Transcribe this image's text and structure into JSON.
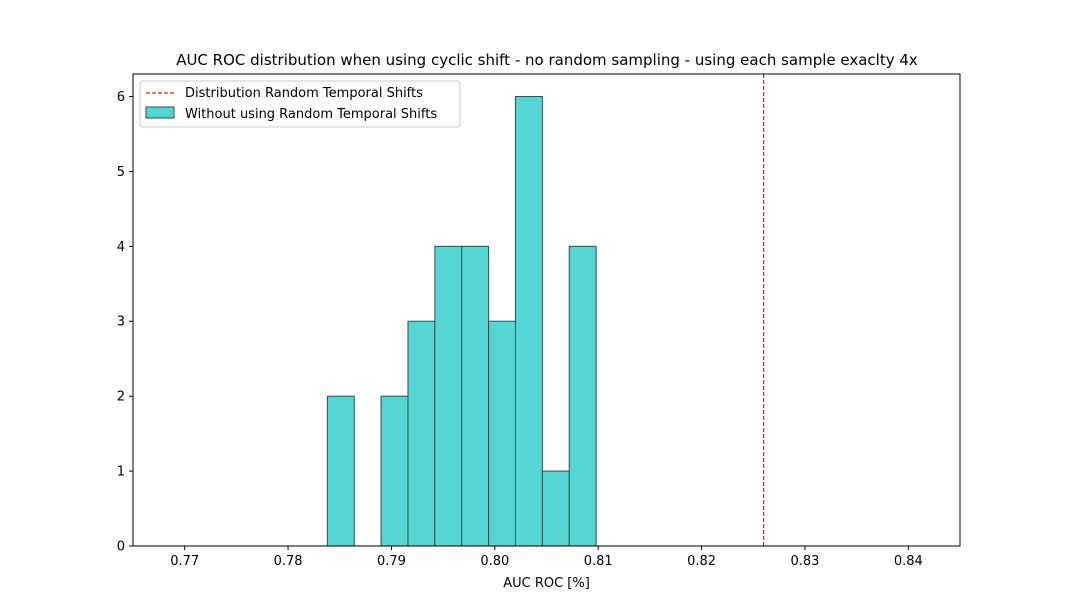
{
  "chart_data": {
    "type": "bar",
    "title": "AUC ROC distribution when using cyclic shift - no random sampling - using each sample exaclty 4x",
    "xlabel": "AUC ROC [%]",
    "ylabel": "",
    "xlim": [
      0.765,
      0.845
    ],
    "ylim": [
      0,
      6.3
    ],
    "x_ticks": [
      0.77,
      0.78,
      0.79,
      0.8,
      0.81,
      0.82,
      0.83,
      0.84
    ],
    "x_tick_labels": [
      "0.77",
      "0.78",
      "0.79",
      "0.80",
      "0.81",
      "0.82",
      "0.83",
      "0.84"
    ],
    "y_ticks": [
      0,
      1,
      2,
      3,
      4,
      5,
      6
    ],
    "y_tick_labels": [
      "0",
      "1",
      "2",
      "3",
      "4",
      "5",
      "6"
    ],
    "bin_width": 0.0026,
    "bins": [
      {
        "start": 0.7838,
        "count": 2
      },
      {
        "start": 0.789,
        "count": 2
      },
      {
        "start": 0.7916,
        "count": 3
      },
      {
        "start": 0.7942,
        "count": 4
      },
      {
        "start": 0.7968,
        "count": 4
      },
      {
        "start": 0.7994,
        "count": 3
      },
      {
        "start": 0.802,
        "count": 6
      },
      {
        "start": 0.8046,
        "count": 1
      },
      {
        "start": 0.8072,
        "count": 4
      }
    ],
    "reference_line": {
      "x": 0.826,
      "color": "#e41a1c",
      "style": "dashed"
    },
    "bar_color": "#56d5d5",
    "bar_edge_color": "#2f4f4f",
    "legend": {
      "placement": "top-left",
      "entries": [
        {
          "label": "Distribution Random Temporal Shifts",
          "kind": "line"
        },
        {
          "label": "Without using Random Temporal Shifts",
          "kind": "patch"
        }
      ]
    },
    "grid": false
  }
}
